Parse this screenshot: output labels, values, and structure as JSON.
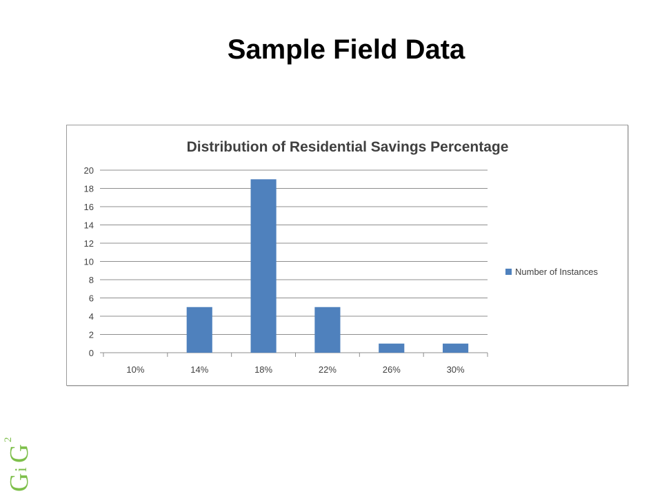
{
  "slide": {
    "title": "Sample Field Data"
  },
  "logo": {
    "text": "GiG",
    "superscript": "2",
    "color": "#7dbf4a"
  },
  "chart_data": {
    "type": "bar",
    "title": "Distribution of Residential Savings Percentage",
    "xlabel": "",
    "ylabel": "",
    "categories": [
      "10%",
      "14%",
      "18%",
      "22%",
      "26%",
      "30%"
    ],
    "series": [
      {
        "name": "Number of Instances",
        "values": [
          0,
          5,
          19,
          5,
          1,
          1
        ],
        "color": "#4f81bd"
      }
    ],
    "ylim": [
      0,
      20
    ],
    "yticks": [
      0,
      2,
      4,
      6,
      8,
      10,
      12,
      14,
      16,
      18,
      20
    ],
    "grid": true,
    "legend_position": "right"
  }
}
